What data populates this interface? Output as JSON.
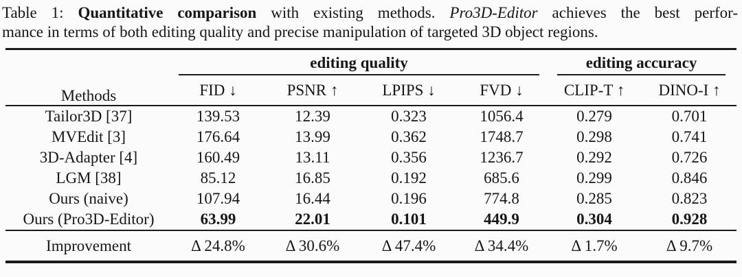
{
  "caption": {
    "line1_prefix": "Table 1: ",
    "line1_bold": "Quantitative comparison",
    "line1_mid": " with existing methods. ",
    "line1_italic": "Pro3D-Editor",
    "line1_suffix": " achieves the best perfor-",
    "line2": "mance in terms of both editing quality and precise manipulation of targeted 3D object regions."
  },
  "table": {
    "methods_header": "Methods",
    "groups": [
      {
        "label": "editing quality",
        "span": 4
      },
      {
        "label": "editing accuracy",
        "span": 2
      }
    ],
    "columns": [
      "FID ↓",
      "PSNR ↑",
      "LPIPS ↓",
      "FVD ↓",
      "CLIP-T ↑",
      "DINO-I ↑"
    ],
    "rows": [
      {
        "method": "Tailor3D [37]",
        "values": [
          "139.53",
          "12.39",
          "0.323",
          "1056.4",
          "0.279",
          "0.701"
        ],
        "bold": false
      },
      {
        "method": "MVEdit [3]",
        "values": [
          "176.64",
          "13.99",
          "0.362",
          "1748.7",
          "0.298",
          "0.741"
        ],
        "bold": false
      },
      {
        "method": "3D-Adapter [4]",
        "values": [
          "160.49",
          "13.11",
          "0.356",
          "1236.7",
          "0.292",
          "0.726"
        ],
        "bold": false
      },
      {
        "method": "LGM [38]",
        "values": [
          "85.12",
          "16.85",
          "0.192",
          "685.6",
          "0.299",
          "0.846"
        ],
        "bold": false
      },
      {
        "method": "Ours (naive)",
        "values": [
          "107.94",
          "16.44",
          "0.196",
          "774.8",
          "0.285",
          "0.823"
        ],
        "bold": false
      },
      {
        "method": "Ours (Pro3D-Editor)",
        "values": [
          "63.99",
          "22.01",
          "0.101",
          "449.9",
          "0.304",
          "0.928"
        ],
        "bold": true
      }
    ],
    "footer": {
      "label": "Improvement",
      "values": [
        "Δ 24.8%",
        "Δ 30.6%",
        "Δ 47.4%",
        "Δ 34.4%",
        "Δ 1.7%",
        "Δ 9.7%"
      ]
    }
  },
  "colors": {
    "text": "#161616",
    "rule": "#1a1a1a",
    "background": "#fbfbfb"
  }
}
